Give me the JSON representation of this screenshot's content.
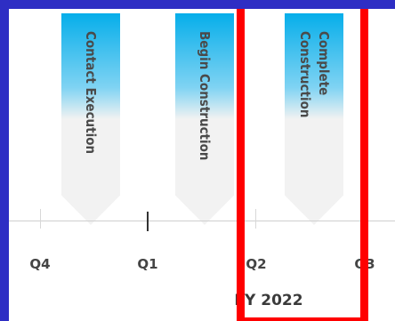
{
  "timeline": {
    "milestones": [
      {
        "label": "Contact Execution"
      },
      {
        "label": "Begin Construction"
      },
      {
        "label": "Complete Construction"
      }
    ],
    "quarters": [
      "Q4",
      "Q1",
      "Q2",
      "Q3"
    ],
    "fiscal_year": "FY 2022"
  },
  "colors": {
    "frame": "#2e2ec4",
    "milestone_accent": "#06aeea",
    "highlight": "#ff0000"
  }
}
